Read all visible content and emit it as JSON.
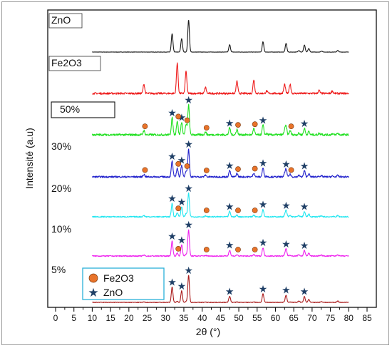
{
  "chart_data": {
    "type": "line",
    "xlabel": "2θ (°)",
    "ylabel": "Intensité (a.u)",
    "xlim": [
      0,
      85
    ],
    "xticks": [
      0,
      5,
      10,
      15,
      20,
      25,
      30,
      35,
      40,
      45,
      50,
      55,
      60,
      65,
      70,
      75,
      80,
      85
    ],
    "grid": false,
    "x_range_measured": [
      10,
      80
    ],
    "legend": {
      "placement": "bottom-left",
      "entries": [
        {
          "name": "Fe2O3",
          "marker": "circle",
          "color": "#e8732a"
        },
        {
          "name": "ZnO",
          "marker": "star",
          "color": "#1f3f66"
        }
      ]
    },
    "peaks": {
      "ZnO": [
        {
          "x": 31.8,
          "rel": 0.57
        },
        {
          "x": 34.4,
          "rel": 0.42
        },
        {
          "x": 36.3,
          "rel": 1.0
        },
        {
          "x": 47.5,
          "rel": 0.23
        },
        {
          "x": 56.6,
          "rel": 0.32
        },
        {
          "x": 62.9,
          "rel": 0.27
        },
        {
          "x": 66.4,
          "rel": 0.05
        },
        {
          "x": 67.9,
          "rel": 0.22
        },
        {
          "x": 69.1,
          "rel": 0.11
        },
        {
          "x": 72.6,
          "rel": 0.03
        },
        {
          "x": 77.0,
          "rel": 0.05
        }
      ],
      "Fe2O3": [
        {
          "x": 24.1,
          "rel": 0.3
        },
        {
          "x": 33.2,
          "rel": 1.0
        },
        {
          "x": 35.6,
          "rel": 0.72
        },
        {
          "x": 40.9,
          "rel": 0.2
        },
        {
          "x": 49.5,
          "rel": 0.4
        },
        {
          "x": 54.1,
          "rel": 0.45
        },
        {
          "x": 57.6,
          "rel": 0.08
        },
        {
          "x": 62.5,
          "rel": 0.3
        },
        {
          "x": 64.0,
          "rel": 0.3
        },
        {
          "x": 71.9,
          "rel": 0.1
        },
        {
          "x": 75.5,
          "rel": 0.08
        }
      ]
    },
    "series": [
      {
        "name": "ZnO",
        "color": "#1a1a1a",
        "zno": 1.0,
        "fe": 0.0,
        "noise": 0.005,
        "star_marks": [],
        "circle_marks": []
      },
      {
        "name": "Fe2O3",
        "color": "#ee1c1c",
        "zno": 0.0,
        "fe": 1.0,
        "noise": 0.03,
        "star_marks": [],
        "circle_marks": []
      },
      {
        "name": "50%",
        "color": "#22e022",
        "zno": 0.75,
        "fe": 0.35,
        "noise": 0.035,
        "star_marks": [
          31.8,
          34.4,
          36.3,
          47.5,
          56.6,
          67.9
        ],
        "circle_marks": [
          24.1,
          33.2,
          35.6,
          40.9,
          49.5,
          54.1,
          64.0
        ]
      },
      {
        "name": "30%",
        "color": "#2222cc",
        "zno": 0.8,
        "fe": 0.25,
        "noise": 0.03,
        "star_marks": [
          31.8,
          34.4,
          36.3,
          47.5,
          56.6,
          62.9,
          67.9
        ],
        "circle_marks": [
          24.1,
          33.2,
          35.6,
          40.9,
          49.5,
          54.1,
          64.0
        ]
      },
      {
        "name": "20%",
        "color": "#22e6f0",
        "zno": 0.85,
        "fe": 0.15,
        "noise": 0.025,
        "star_marks": [
          31.8,
          34.4,
          36.3,
          47.5,
          56.6,
          62.9,
          67.9
        ],
        "circle_marks": [
          33.2,
          40.9,
          49.5,
          54.1
        ]
      },
      {
        "name": "10%",
        "color": "#ee22ee",
        "zno": 0.9,
        "fe": 0.1,
        "noise": 0.02,
        "star_marks": [
          31.8,
          34.4,
          36.3,
          47.5,
          56.6,
          62.9,
          67.9
        ],
        "circle_marks": [
          33.2,
          40.9,
          49.5,
          54.1
        ]
      },
      {
        "name": "5%",
        "color": "#aa1b1b",
        "zno": 1.0,
        "fe": 0.04,
        "noise": 0.012,
        "star_marks": [
          31.8,
          34.4,
          36.3,
          47.5,
          56.6,
          62.9,
          67.9
        ],
        "circle_marks": []
      }
    ]
  }
}
